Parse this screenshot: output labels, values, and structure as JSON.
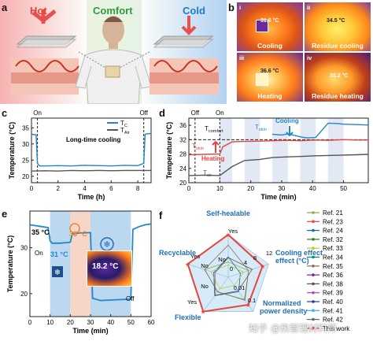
{
  "panels": {
    "a": {
      "label": "a",
      "hot": "Hot",
      "comfort": "Comfort",
      "cold": "Cold"
    },
    "b": {
      "label": "b",
      "images": [
        {
          "idx": "i",
          "caption": "Cooling",
          "temp": "31.6 °C"
        },
        {
          "idx": "ii",
          "caption": "Residue cooling",
          "temp": "34.5 °C"
        },
        {
          "idx": "iii",
          "caption": "Heating",
          "temp": "36.6 °C"
        },
        {
          "idx": "iv",
          "caption": "Residue heating",
          "temp": "33.2 °C"
        }
      ]
    },
    "c": {
      "label": "c"
    },
    "d": {
      "label": "d"
    },
    "e": {
      "label": "e",
      "thermal_temp": "18.2 °C"
    },
    "f": {
      "label": "f"
    }
  },
  "chart_data": [
    {
      "id": "c",
      "type": "line",
      "xlabel": "Time (h)",
      "ylabel": "Temperature (°C)",
      "xlim": [
        0,
        9
      ],
      "ylim": [
        18,
        38
      ],
      "xticks": [
        0,
        2,
        4,
        6,
        8
      ],
      "yticks": [
        20,
        25,
        30,
        35
      ],
      "annotations": {
        "on": "On",
        "off": "Off",
        "middle": "Long-time cooling"
      },
      "on_x": 0.45,
      "off_x": 8.45,
      "series": [
        {
          "name": "T_C",
          "color": "#1e88c8",
          "x": [
            0,
            0.35,
            0.45,
            0.6,
            1,
            2,
            3,
            4,
            5,
            6,
            7,
            8,
            8.45,
            8.55,
            8.8,
            9
          ],
          "y": [
            33,
            32.8,
            24,
            23.2,
            23.2,
            23.3,
            23.2,
            23.4,
            23.3,
            23.2,
            23.4,
            23.3,
            24,
            33,
            33.2,
            33.2
          ]
        },
        {
          "name": "T_Air",
          "color": "#555555",
          "x": [
            0,
            1,
            2,
            3,
            4,
            5,
            6,
            7,
            8,
            9
          ],
          "y": [
            21.6,
            21.7,
            21.6,
            21.8,
            21.7,
            21.8,
            21.7,
            21.8,
            21.8,
            21.8
          ]
        }
      ],
      "legend": [
        "T",
        "T"
      ],
      "legend_subs": [
        "C",
        "Air"
      ]
    },
    {
      "id": "d",
      "type": "line",
      "xlabel": "Time (min)",
      "ylabel": "Temperature (°C)",
      "xlim": [
        0,
        58
      ],
      "ylim": [
        20,
        38
      ],
      "xticks": [
        0,
        10,
        20,
        30,
        40,
        50
      ],
      "yticks": [
        20,
        24,
        28,
        32,
        36
      ],
      "comfort_line": 32,
      "labels": {
        "off": "Off",
        "on": "On",
        "t_comfort": "T",
        "t_comfort_sub": "comfort",
        "t_skin": "T",
        "t_skin_sub": "skin",
        "t_air": "T",
        "t_air_sub": "air",
        "heating": "Heating",
        "cooling": "Cooling"
      },
      "bands": [
        [
          10,
          14
        ],
        [
          18,
          23
        ],
        [
          27,
          32
        ],
        [
          36,
          41
        ],
        [
          45,
          50
        ]
      ],
      "series": [
        {
          "name": "skin",
          "color": "#e8433a",
          "x": [
            0,
            5,
            10,
            11,
            14,
            18,
            23,
            27,
            32,
            36,
            41,
            45,
            50,
            54,
            58
          ],
          "y": [
            27.8,
            27.9,
            28,
            30,
            31.4,
            31.5,
            31.6,
            31.7,
            31.8,
            31.7,
            31.9,
            31.8,
            32,
            31.9,
            31.9
          ]
        },
        {
          "name": "cooling",
          "color": "#1e88c8",
          "x": [
            27,
            30,
            32,
            36,
            38,
            41,
            45,
            48,
            50,
            54,
            58
          ],
          "y": [
            33.5,
            33.3,
            33.6,
            32.8,
            32.5,
            32.6,
            36.6,
            36.5,
            36.3,
            36.2,
            36.1
          ]
        },
        {
          "name": "air",
          "color": "#555555",
          "x": [
            0,
            5,
            10,
            14,
            18,
            23,
            27,
            32,
            36,
            41,
            45,
            50,
            54,
            58
          ],
          "y": [
            22,
            22.1,
            22,
            24.5,
            26.2,
            26.5,
            27,
            27.2,
            27.3,
            27.5,
            27.6,
            27.7,
            27.8,
            27.9
          ]
        }
      ]
    },
    {
      "id": "e",
      "type": "line",
      "xlabel": "Time (min)",
      "ylabel": "Temperature (°C)",
      "xlim": [
        0,
        60
      ],
      "ylim": [
        15,
        38
      ],
      "xticks": [
        0,
        10,
        20,
        30,
        40,
        50,
        60
      ],
      "yticks": [
        20,
        30
      ],
      "labels": {
        "t35": "35 °C",
        "t31": "31 °C",
        "t33": "33 °C",
        "on": "On",
        "off": "Off"
      },
      "bands": [
        {
          "x": [
            10,
            20
          ],
          "color": "#bcd7f0"
        },
        {
          "x": [
            20,
            30
          ],
          "color": "#f7d6c8"
        },
        {
          "x": [
            30,
            50
          ],
          "color": "#bcd7f0"
        }
      ],
      "series": [
        {
          "name": "temperature",
          "color": "#1e88c8",
          "x": [
            0,
            3,
            6,
            9,
            10,
            11,
            15,
            20,
            21,
            24,
            30,
            31,
            35,
            40,
            45,
            50,
            51,
            54,
            57,
            60
          ],
          "y": [
            35,
            34.8,
            34.6,
            34.4,
            31.5,
            31,
            31,
            31.2,
            33,
            33.2,
            33.3,
            19,
            18.5,
            18.6,
            18.7,
            18.8,
            34,
            34.6,
            35,
            35.2
          ]
        }
      ]
    },
    {
      "id": "f",
      "type": "radar",
      "axes": [
        "Self-healable",
        "Cooling effect (°C)",
        "Normalized power density",
        "Flexible",
        "Recyclable"
      ],
      "ring_labels": {
        "yes": "Yes",
        "no": "No",
        "v0": "0",
        "v4": "4",
        "v8": "8",
        "v12": "12",
        "v001": "0.01",
        "v01": "0.1"
      },
      "legend": [
        {
          "name": "Ref. 21",
          "color": "#7cb342"
        },
        {
          "name": "Ref. 23",
          "color": "#e8433a"
        },
        {
          "name": "Ref. 24",
          "color": "#1565c0"
        },
        {
          "name": "Ref. 32",
          "color": "#2e7d32"
        },
        {
          "name": "Ref. 33",
          "color": "#c0ca33"
        },
        {
          "name": "Ref. 34",
          "color": "#00897b"
        },
        {
          "name": "Ref. 35",
          "color": "#8d6e63"
        },
        {
          "name": "Ref. 36",
          "color": "#7b1fa2"
        },
        {
          "name": "Ref. 38",
          "color": "#6d4c41"
        },
        {
          "name": "Ref. 39",
          "color": "#ab47bc"
        },
        {
          "name": "Ref. 40",
          "color": "#283593"
        },
        {
          "name": "Ref. 41",
          "color": "#29b6f6"
        },
        {
          "name": "Ref. 42",
          "color": "#546e7a"
        },
        {
          "name": "This work",
          "color": "#e8433a"
        }
      ],
      "this_work": [
        1,
        0.85,
        0.8,
        1,
        1
      ]
    }
  ],
  "watermark": "知乎 @热管理材料邦"
}
